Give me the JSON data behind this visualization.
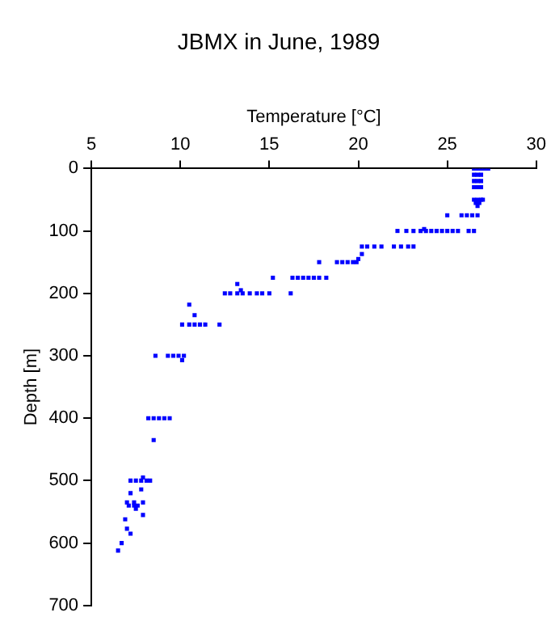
{
  "chart_data": {
    "type": "scatter",
    "title": "JBMX in June, 1989",
    "xlabel": "Temperature [°C]",
    "ylabel": "Depth [m]",
    "x": [
      26.5,
      26.7,
      26.9,
      27.1,
      27.3,
      26.5,
      26.7,
      26.9,
      26.5,
      26.7,
      26.9,
      26.5,
      26.7,
      26.9,
      26.5,
      26.7,
      26.9,
      27.0,
      26.6,
      26.8,
      26.7,
      25.0,
      25.8,
      26.1,
      26.4,
      26.7,
      22.2,
      22.7,
      23.1,
      23.5,
      23.8,
      24.1,
      24.4,
      24.7,
      25.0,
      25.3,
      25.6,
      26.2,
      26.5,
      23.7,
      20.2,
      20.5,
      20.9,
      21.3,
      22.0,
      22.4,
      22.8,
      23.1,
      20.2,
      17.8,
      18.8,
      19.1,
      19.4,
      19.7,
      19.9,
      20.0,
      15.2,
      16.3,
      16.6,
      16.9,
      17.2,
      17.5,
      17.8,
      18.2,
      13.2,
      12.5,
      12.8,
      13.2,
      13.5,
      13.9,
      14.3,
      14.6,
      15.0,
      16.2,
      13.4,
      10.5,
      10.8,
      10.1,
      10.5,
      10.8,
      11.1,
      11.4,
      12.2,
      8.6,
      9.3,
      9.6,
      9.9,
      10.2,
      10.1,
      8.2,
      8.5,
      8.8,
      9.1,
      9.4,
      8.5,
      7.9,
      7.2,
      7.5,
      7.8,
      8.1,
      8.3,
      7.8,
      7.2,
      7.0,
      7.4,
      7.9,
      7.1,
      7.4,
      7.6,
      7.5,
      7.9,
      6.9,
      7.0,
      7.2,
      6.7,
      6.5
    ],
    "values": [
      0,
      0,
      0,
      0,
      0,
      10,
      10,
      10,
      20,
      20,
      20,
      30,
      30,
      30,
      50,
      50,
      50,
      50,
      55,
      55,
      60,
      75,
      75,
      75,
      75,
      75,
      100,
      100,
      100,
      100,
      100,
      100,
      100,
      100,
      100,
      100,
      100,
      100,
      100,
      97,
      125,
      125,
      125,
      125,
      125,
      125,
      125,
      125,
      137,
      150,
      150,
      150,
      150,
      150,
      150,
      145,
      175,
      175,
      175,
      175,
      175,
      175,
      175,
      175,
      185,
      200,
      200,
      200,
      200,
      200,
      200,
      200,
      200,
      200,
      195,
      218,
      235,
      250,
      250,
      250,
      250,
      250,
      250,
      300,
      300,
      300,
      300,
      300,
      307,
      400,
      400,
      400,
      400,
      400,
      435,
      495,
      500,
      500,
      500,
      500,
      500,
      514,
      520,
      535,
      535,
      535,
      540,
      540,
      540,
      545,
      555,
      562,
      577,
      585,
      600,
      612
    ],
    "color": "#0000ff",
    "marker": "square",
    "xlim": [
      5,
      30
    ],
    "xticks": [
      5,
      10,
      15,
      20,
      25,
      30
    ],
    "ylim": [
      700,
      0
    ],
    "yticks": [
      0,
      100,
      200,
      300,
      400,
      500,
      600,
      700
    ],
    "grid": false,
    "legend": false
  }
}
